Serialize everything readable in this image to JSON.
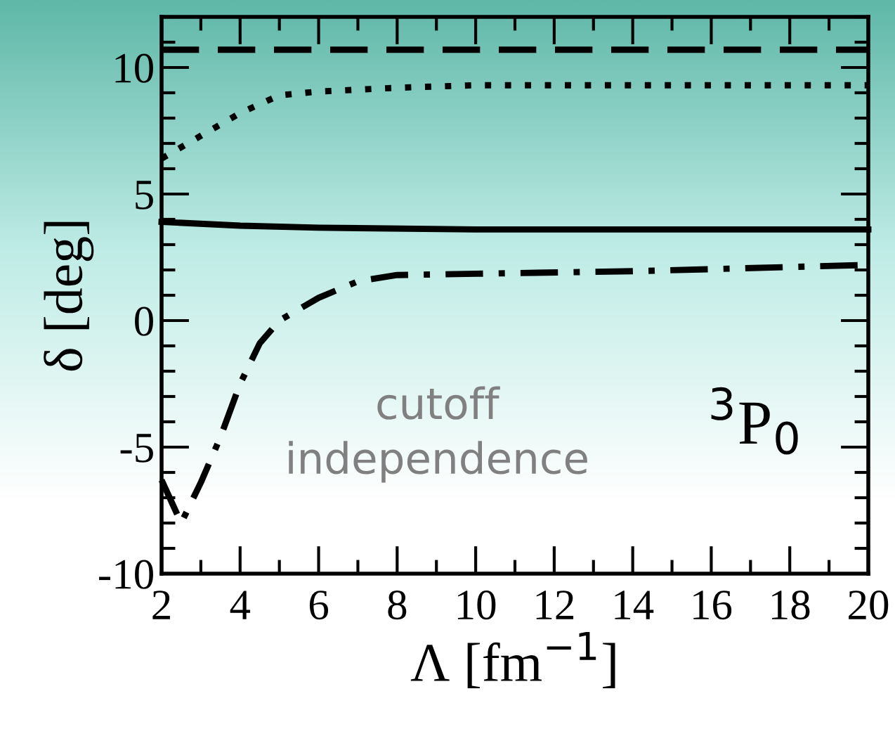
{
  "chart_data": {
    "type": "line",
    "xlabel": "Λ [fm$^{−1}$]",
    "ylabel": "δ [deg]",
    "xlim": [
      2,
      20
    ],
    "ylim": [
      -10,
      12
    ],
    "xticks": [
      2,
      4,
      6,
      8,
      10,
      12,
      14,
      16,
      18,
      20
    ],
    "yticks": [
      -10,
      -5,
      0,
      5,
      10
    ],
    "grid": false,
    "legend": false,
    "marker": "none",
    "annotations": [
      "cutoff\nindependence",
      "$^{3}$P$_{0}$"
    ],
    "series": [
      {
        "color": "#000000",
        "line_style": "dashed",
        "x": [
          2,
          20
        ],
        "values": [
          10.7,
          10.7
        ]
      },
      {
        "color": "#000000",
        "line_style": "dotted",
        "x": [
          2,
          3,
          4,
          5,
          6,
          8,
          10,
          14,
          20
        ],
        "values": [
          6.4,
          7.3,
          8.2,
          8.9,
          9.05,
          9.2,
          9.3,
          9.3,
          9.3
        ]
      },
      {
        "color": "#000000",
        "line_style": "solid",
        "x": [
          2,
          4,
          6,
          10,
          20
        ],
        "values": [
          3.9,
          3.75,
          3.67,
          3.6,
          3.6
        ]
      },
      {
        "color": "#000000",
        "line_style": "dashdot",
        "x": [
          2,
          2.5,
          3,
          3.5,
          4,
          4.5,
          5,
          6,
          7,
          8,
          10,
          14,
          20
        ],
        "values": [
          -6.3,
          -8.0,
          -6.4,
          -4.6,
          -2.5,
          -0.9,
          0,
          0.9,
          1.55,
          1.8,
          1.85,
          1.95,
          2.2
        ]
      }
    ]
  }
}
